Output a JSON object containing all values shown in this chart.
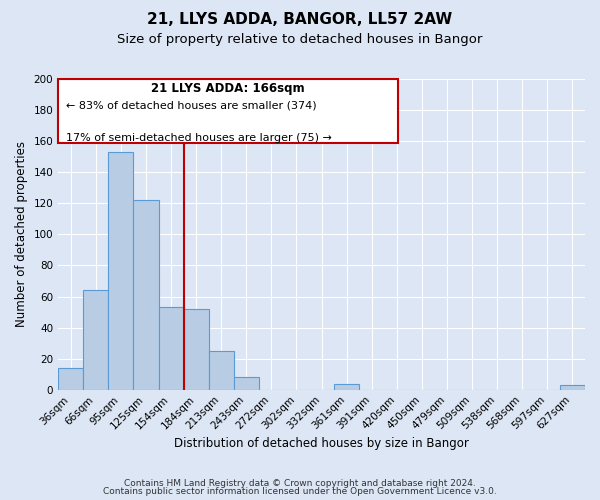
{
  "title": "21, LLYS ADDA, BANGOR, LL57 2AW",
  "subtitle": "Size of property relative to detached houses in Bangor",
  "xlabel": "Distribution of detached houses by size in Bangor",
  "ylabel": "Number of detached properties",
  "footnote1": "Contains HM Land Registry data © Crown copyright and database right 2024.",
  "footnote2": "Contains public sector information licensed under the Open Government Licence v3.0.",
  "bar_labels": [
    "36sqm",
    "66sqm",
    "95sqm",
    "125sqm",
    "154sqm",
    "184sqm",
    "213sqm",
    "243sqm",
    "272sqm",
    "302sqm",
    "332sqm",
    "361sqm",
    "391sqm",
    "420sqm",
    "450sqm",
    "479sqm",
    "509sqm",
    "538sqm",
    "568sqm",
    "597sqm",
    "627sqm"
  ],
  "bar_values": [
    14,
    64,
    153,
    122,
    53,
    52,
    25,
    8,
    0,
    0,
    0,
    4,
    0,
    0,
    0,
    0,
    0,
    0,
    0,
    0,
    3
  ],
  "bar_color": "#b8cce4",
  "bar_edgecolor": "#5b9bd5",
  "ylim": [
    0,
    200
  ],
  "yticks": [
    0,
    20,
    40,
    60,
    80,
    100,
    120,
    140,
    160,
    180,
    200
  ],
  "vline_x": 4.5,
  "vline_color": "#c00000",
  "annotation_title": "21 LLYS ADDA: 166sqm",
  "annotation_line1": "← 83% of detached houses are smaller (374)",
  "annotation_line2": "17% of semi-detached houses are larger (75) →",
  "annotation_box_edgecolor": "#c00000",
  "background_color": "#dce6f5",
  "plot_bg_color": "#dce6f5",
  "grid_color": "#ffffff",
  "title_fontsize": 11,
  "subtitle_fontsize": 9.5,
  "label_fontsize": 8.5,
  "tick_fontsize": 7.5,
  "footnote_fontsize": 6.5
}
